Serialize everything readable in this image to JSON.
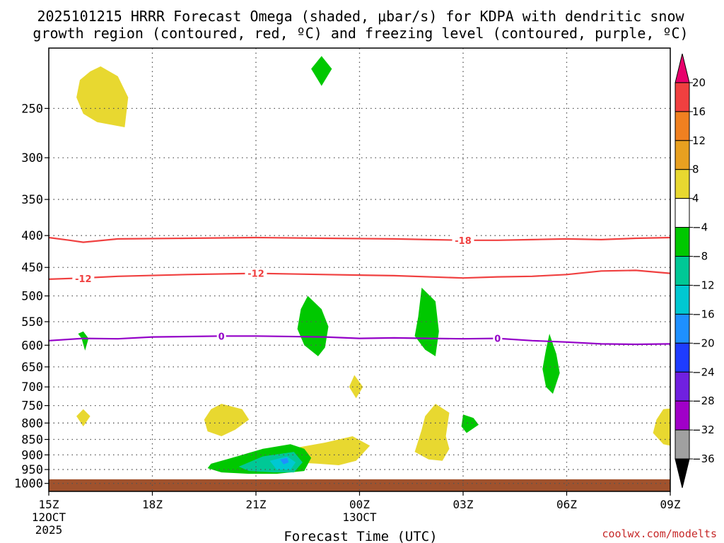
{
  "title": {
    "line1": "2025101215 HRRR Forecast Omega (shaded, μbar/s) for KDPA with dendritic snow",
    "line2": "growth region (contoured, red, ºC) and freezing level (contoured, purple, ºC)"
  },
  "credit": "coolwx.com/modelts",
  "chart_data": {
    "type": "contour-timeseries",
    "xlabel": "Forecast Time (UTC)",
    "ylabel": "",
    "x_range_hours": [
      0,
      18
    ],
    "x_ticks": [
      {
        "h": 0,
        "label": "15Z",
        "sub1": "12OCT",
        "sub2": "2025"
      },
      {
        "h": 3,
        "label": "18Z",
        "sub1": "",
        "sub2": ""
      },
      {
        "h": 6,
        "label": "21Z",
        "sub1": "",
        "sub2": ""
      },
      {
        "h": 9,
        "label": "00Z",
        "sub1": "13OCT",
        "sub2": ""
      },
      {
        "h": 12,
        "label": "03Z",
        "sub1": "",
        "sub2": ""
      },
      {
        "h": 15,
        "label": "06Z",
        "sub1": "",
        "sub2": ""
      },
      {
        "h": 18,
        "label": "09Z",
        "sub1": "",
        "sub2": ""
      }
    ],
    "y_axis_pressure_hPa": {
      "top": 200,
      "bottom": 1030,
      "scale": "log"
    },
    "y_ticks": [
      250,
      300,
      350,
      400,
      450,
      500,
      550,
      600,
      650,
      700,
      750,
      800,
      850,
      900,
      950,
      1000
    ],
    "colorbar": {
      "labels": [
        "20",
        "16",
        "12",
        "8",
        "4",
        "−4",
        "−8",
        "−12",
        "−16",
        "−20",
        "−24",
        "−28",
        "−32",
        "−36"
      ],
      "colors": [
        "#e8006c",
        "#f04040",
        "#f08020",
        "#e8a020",
        "#e8d830",
        "#ffffff",
        "#00c800",
        "#00c896",
        "#00c8d2",
        "#1e90ff",
        "#1e3cff",
        "#7020e0",
        "#a000c8",
        "#a0a0a0",
        "#000000"
      ]
    },
    "contours": [
      {
        "name": "dgz-minus18",
        "value": -18,
        "label": "-18",
        "color": "#f04040",
        "points": [
          [
            0,
            403
          ],
          [
            0.6,
            407
          ],
          [
            1,
            410
          ],
          [
            2,
            405
          ],
          [
            4,
            404
          ],
          [
            6,
            403
          ],
          [
            8,
            404
          ],
          [
            10,
            405
          ],
          [
            11,
            406
          ],
          [
            12,
            407
          ],
          [
            13,
            407
          ],
          [
            14,
            406
          ],
          [
            15,
            405
          ],
          [
            16,
            406
          ],
          [
            17,
            404
          ],
          [
            18,
            403
          ]
        ]
      },
      {
        "name": "dgz-minus12",
        "value": -12,
        "label": "-12",
        "color": "#f04040",
        "points": [
          [
            0,
            470
          ],
          [
            1,
            468
          ],
          [
            2,
            465
          ],
          [
            4,
            462
          ],
          [
            6,
            460
          ],
          [
            8,
            462
          ],
          [
            10,
            464
          ],
          [
            12,
            468
          ],
          [
            13,
            466
          ],
          [
            14,
            465
          ],
          [
            15,
            462
          ],
          [
            16,
            456
          ],
          [
            17,
            455
          ],
          [
            18,
            460
          ]
        ]
      },
      {
        "name": "freezing-level",
        "value": 0,
        "label": "0",
        "color": "#9400c8",
        "points": [
          [
            0,
            590
          ],
          [
            1,
            585
          ],
          [
            2,
            586
          ],
          [
            3,
            582
          ],
          [
            4,
            581
          ],
          [
            5,
            580
          ],
          [
            6,
            580
          ],
          [
            8,
            582
          ],
          [
            9,
            585
          ],
          [
            10,
            584
          ],
          [
            11,
            585
          ],
          [
            12,
            586
          ],
          [
            13,
            585
          ],
          [
            14,
            590
          ],
          [
            15,
            593
          ],
          [
            16,
            597
          ],
          [
            17,
            598
          ],
          [
            18,
            597
          ]
        ]
      }
    ],
    "contour_labels": [
      {
        "for": "dgz-minus18",
        "text": "-18",
        "h": 12.0,
        "p": 407
      },
      {
        "for": "dgz-minus12",
        "text": "-12",
        "h": 1.0,
        "p": 469
      },
      {
        "for": "dgz-minus12",
        "text": "-12",
        "h": 6.0,
        "p": 460
      },
      {
        "for": "freezing-level",
        "text": "0",
        "h": 5.0,
        "p": 580
      },
      {
        "for": "freezing-level",
        "text": "0",
        "h": 13.0,
        "p": 585
      }
    ],
    "shaded_regions": [
      {
        "name": "omega-pos-upper-left",
        "color": "#e8d830",
        "points": [
          [
            1.2,
            218
          ],
          [
            1.5,
            214
          ],
          [
            2.0,
            222
          ],
          [
            2.3,
            240
          ],
          [
            2.2,
            268
          ],
          [
            1.4,
            263
          ],
          [
            1.0,
            255
          ],
          [
            0.8,
            240
          ],
          [
            0.9,
            225
          ]
        ]
      },
      {
        "name": "omega-neg-top",
        "color": "#00c800",
        "points": [
          [
            7.9,
            206
          ],
          [
            8.2,
            216
          ],
          [
            7.9,
            230
          ],
          [
            7.6,
            216
          ]
        ]
      },
      {
        "name": "omega-neg-left-small",
        "color": "#00c800",
        "points": [
          [
            1.0,
            570
          ],
          [
            1.15,
            585
          ],
          [
            1.05,
            612
          ],
          [
            0.95,
            585
          ],
          [
            0.85,
            575
          ]
        ]
      },
      {
        "name": "omega-neg-mid1",
        "color": "#00c800",
        "points": [
          [
            7.5,
            500
          ],
          [
            7.9,
            525
          ],
          [
            8.1,
            560
          ],
          [
            8.0,
            605
          ],
          [
            7.8,
            625
          ],
          [
            7.4,
            600
          ],
          [
            7.2,
            565
          ],
          [
            7.3,
            525
          ]
        ]
      },
      {
        "name": "omega-neg-mid2",
        "color": "#00c800",
        "points": [
          [
            10.8,
            485
          ],
          [
            11.2,
            510
          ],
          [
            11.3,
            570
          ],
          [
            11.2,
            625
          ],
          [
            10.9,
            610
          ],
          [
            10.6,
            580
          ],
          [
            10.7,
            540
          ]
        ]
      },
      {
        "name": "omega-neg-right",
        "color": "#00c800",
        "points": [
          [
            14.5,
            575
          ],
          [
            14.7,
            620
          ],
          [
            14.8,
            665
          ],
          [
            14.6,
            718
          ],
          [
            14.4,
            700
          ],
          [
            14.3,
            655
          ],
          [
            14.4,
            610
          ]
        ]
      },
      {
        "name": "omega-pos-small-mid",
        "color": "#e8d830",
        "points": [
          [
            8.85,
            670
          ],
          [
            9.1,
            700
          ],
          [
            8.9,
            730
          ],
          [
            8.7,
            700
          ]
        ]
      },
      {
        "name": "omega-pos-left-small",
        "color": "#e8d830",
        "points": [
          [
            1.0,
            760
          ],
          [
            1.2,
            780
          ],
          [
            1.0,
            810
          ],
          [
            0.8,
            780
          ]
        ]
      },
      {
        "name": "omega-pos-lower1",
        "color": "#e8d830",
        "points": [
          [
            5.0,
            745
          ],
          [
            5.6,
            760
          ],
          [
            5.8,
            790
          ],
          [
            5.4,
            820
          ],
          [
            5.0,
            840
          ],
          [
            4.6,
            825
          ],
          [
            4.5,
            790
          ],
          [
            4.7,
            760
          ]
        ]
      },
      {
        "name": "omega-neg-lower2",
        "color": "#00c800",
        "points": [
          [
            12.0,
            775
          ],
          [
            12.3,
            785
          ],
          [
            12.45,
            805
          ],
          [
            12.1,
            830
          ],
          [
            11.95,
            810
          ]
        ]
      },
      {
        "name": "omega-pos-lower3",
        "color": "#e8d830",
        "points": [
          [
            11.2,
            745
          ],
          [
            11.6,
            770
          ],
          [
            11.5,
            840
          ],
          [
            11.6,
            880
          ],
          [
            11.4,
            920
          ],
          [
            11.0,
            915
          ],
          [
            10.6,
            890
          ],
          [
            10.8,
            820
          ],
          [
            10.9,
            780
          ]
        ]
      },
      {
        "name": "omega-pos-lower4",
        "color": "#e8d830",
        "points": [
          [
            17.8,
            760
          ],
          [
            18.0,
            758
          ],
          [
            18.0,
            870
          ],
          [
            17.8,
            865
          ],
          [
            17.5,
            830
          ],
          [
            17.6,
            790
          ]
        ]
      },
      {
        "name": "omega-pos-lower5",
        "color": "#e8d830",
        "points": [
          [
            7.0,
            880
          ],
          [
            8.0,
            860
          ],
          [
            8.8,
            840
          ],
          [
            9.3,
            870
          ],
          [
            8.9,
            920
          ],
          [
            8.4,
            935
          ],
          [
            7.8,
            930
          ],
          [
            7.1,
            925
          ]
        ]
      },
      {
        "name": "omega-neg-lower-bottom",
        "color": "#00c800",
        "points": [
          [
            4.7,
            930
          ],
          [
            5.3,
            910
          ],
          [
            6.2,
            880
          ],
          [
            7.0,
            865
          ],
          [
            7.4,
            880
          ],
          [
            7.6,
            910
          ],
          [
            7.4,
            955
          ],
          [
            6.6,
            965
          ],
          [
            5.8,
            965
          ],
          [
            5.0,
            960
          ],
          [
            4.6,
            945
          ]
        ]
      },
      {
        "name": "omega-neg8-core",
        "color": "#00c896",
        "points": [
          [
            5.5,
            940
          ],
          [
            6.2,
            905
          ],
          [
            7.1,
            890
          ],
          [
            7.35,
            925
          ],
          [
            7.1,
            960
          ],
          [
            6.5,
            960
          ],
          [
            5.8,
            955
          ]
        ]
      },
      {
        "name": "omega-neg12-core",
        "color": "#00c8d2",
        "points": [
          [
            6.4,
            920
          ],
          [
            6.9,
            905
          ],
          [
            7.15,
            925
          ],
          [
            7.0,
            950
          ],
          [
            6.6,
            950
          ]
        ]
      },
      {
        "name": "omega-neg16-core",
        "color": "#1e90ff",
        "points": [
          [
            6.7,
            915
          ],
          [
            6.9,
            910
          ],
          [
            6.95,
            925
          ],
          [
            6.8,
            932
          ]
        ]
      }
    ],
    "terrain": {
      "name": "terrain",
      "color": "#a0522d",
      "top_hPa": 985
    }
  }
}
